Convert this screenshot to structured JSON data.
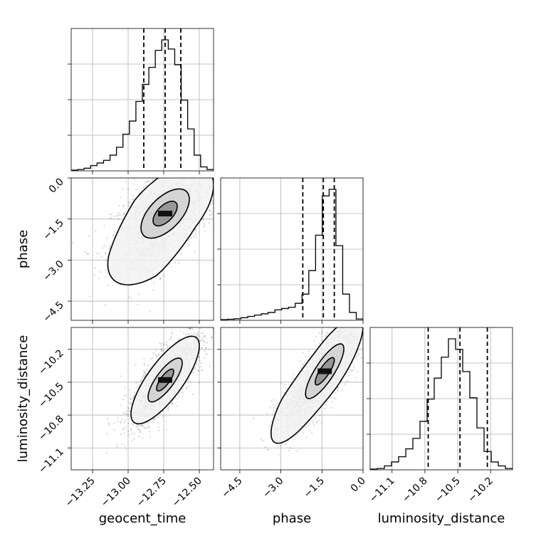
{
  "chart_data": {
    "type": "corner",
    "parameters": [
      "geocent_time",
      "phase",
      "luminosity_distance"
    ],
    "axis_labels": [
      "geocent_time",
      "phase",
      "luminosity_distance"
    ],
    "ranges": [
      [
        -13.4,
        -12.4
      ],
      [
        -5.2,
        0.0
      ],
      [
        -11.3,
        -10.0
      ]
    ],
    "ticks": {
      "geocent_time": [
        "-13.25",
        "-13.00",
        "-12.75",
        "-12.50"
      ],
      "phase": [
        "-4.5",
        "-3.0",
        "-1.5",
        "0.0"
      ],
      "luminosity_distance": [
        "-11.1",
        "-10.8",
        "-10.5",
        "-10.2"
      ]
    },
    "quantiles": {
      "geocent_time": [
        -12.89,
        -12.74,
        -12.63
      ],
      "phase": [
        -2.2,
        -1.45,
        -1.05
      ],
      "luminosity_distance": [
        -10.77,
        -10.48,
        -10.23
      ]
    },
    "histograms": {
      "geocent_time": [
        0.005,
        0.01,
        0.02,
        0.04,
        0.06,
        0.08,
        0.12,
        0.18,
        0.28,
        0.38,
        0.53,
        0.66,
        0.79,
        0.92,
        1.0,
        0.93,
        0.81,
        0.54,
        0.32,
        0.12,
        0.03,
        0.01
      ],
      "phase": [
        0.005,
        0.008,
        0.012,
        0.02,
        0.03,
        0.04,
        0.05,
        0.06,
        0.08,
        0.09,
        0.1,
        0.13,
        0.2,
        0.38,
        0.65,
        0.95,
        1.0,
        0.57,
        0.2,
        0.06,
        0.01
      ],
      "luminosity_distance": [
        0.005,
        0.01,
        0.03,
        0.06,
        0.1,
        0.16,
        0.24,
        0.37,
        0.54,
        0.7,
        0.86,
        1.0,
        0.92,
        0.75,
        0.55,
        0.32,
        0.14,
        0.06,
        0.03,
        0.01
      ]
    },
    "pairs": [
      {
        "x": "geocent_time",
        "y": "phase",
        "center": [
          -12.74,
          -1.3
        ],
        "sigma": [
          0.17,
          0.9
        ],
        "rho": 0.58,
        "levels": [
          0.5,
          1.0,
          2.0
        ],
        "tail": [
          -12.92,
          -3.6
        ]
      },
      {
        "x": "geocent_time",
        "y": "luminosity_distance",
        "center": [
          -12.74,
          -10.48
        ],
        "sigma": [
          0.12,
          0.2
        ],
        "rho": 0.78,
        "levels": [
          0.5,
          1.0,
          2.0
        ],
        "tail": null
      },
      {
        "x": "phase",
        "y": "luminosity_distance",
        "center": [
          -1.4,
          -10.4
        ],
        "sigma": [
          0.7,
          0.25
        ],
        "rho": 0.82,
        "levels": [
          0.5,
          1.0,
          2.0
        ],
        "tail": [
          -3.0,
          -10.85
        ]
      }
    ],
    "grid": true
  }
}
